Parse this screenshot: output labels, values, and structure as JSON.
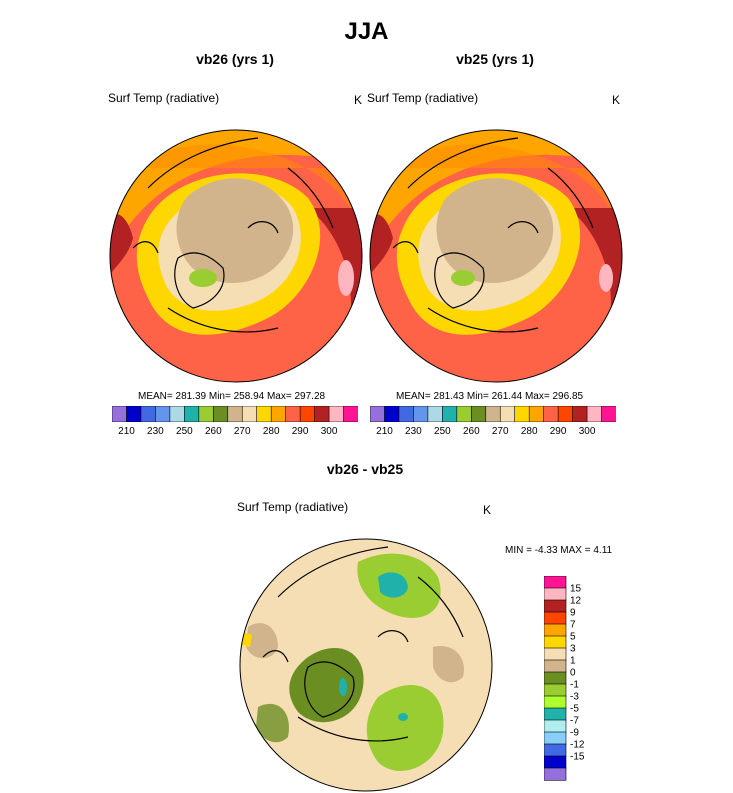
{
  "title": "JJA",
  "panels": [
    {
      "title": "vb26 (yrs 1)",
      "variable": "Surf Temp (radiative)",
      "units": "K",
      "stats": "MEAN= 281.39  Min= 258.94  Max= 297.28"
    },
    {
      "title": "vb25 (yrs 1)",
      "variable": "Surf Temp (radiative)",
      "units": "K",
      "stats": "MEAN= 281.43  Min= 261.44  Max= 296.85"
    },
    {
      "title": "vb26 - vb25",
      "variable": "Surf Temp (radiative)",
      "units": "K",
      "stats": "MIN =  -4.33 MAX =   4.11"
    }
  ],
  "chart_data": [
    {
      "type": "heatmap",
      "projection": "polar-stereographic (north pole)",
      "title": "vb26 (yrs 1)",
      "variable": "Surf Temp (radiative)",
      "units": "K",
      "mean": 281.39,
      "min": 258.94,
      "max": 297.28,
      "colorbar": {
        "orientation": "horizontal",
        "placement": "bottom",
        "tick_labels": [
          "210",
          "230",
          "250",
          "260",
          "270",
          "280",
          "290",
          "300"
        ],
        "colors": [
          "#9370DB",
          "#0000CD",
          "#4169E1",
          "#6495ED",
          "#ADD8E6",
          "#20B2AA",
          "#9ACD32",
          "#6B8E23",
          "#D2B48C",
          "#F5DEB3",
          "#FFD700",
          "#FFA500",
          "#FF6347",
          "#FF4500",
          "#B22222",
          "#FFB6C1",
          "#FF1493"
        ]
      }
    },
    {
      "type": "heatmap",
      "projection": "polar-stereographic (north pole)",
      "title": "vb25 (yrs 1)",
      "variable": "Surf Temp (radiative)",
      "units": "K",
      "mean": 281.43,
      "min": 261.44,
      "max": 296.85,
      "colorbar": {
        "orientation": "horizontal",
        "placement": "bottom",
        "tick_labels": [
          "210",
          "230",
          "250",
          "260",
          "270",
          "280",
          "290",
          "300"
        ],
        "colors": [
          "#9370DB",
          "#0000CD",
          "#4169E1",
          "#6495ED",
          "#ADD8E6",
          "#20B2AA",
          "#9ACD32",
          "#6B8E23",
          "#D2B48C",
          "#F5DEB3",
          "#FFD700",
          "#FFA500",
          "#FF6347",
          "#FF4500",
          "#B22222",
          "#FFB6C1",
          "#FF1493"
        ]
      }
    },
    {
      "type": "heatmap",
      "projection": "polar-stereographic (north pole)",
      "title": "vb26 - vb25",
      "variable": "Surf Temp (radiative)",
      "units": "K",
      "min": -4.33,
      "max": 4.11,
      "colorbar": {
        "orientation": "vertical",
        "placement": "right",
        "tick_labels": [
          "15",
          "12",
          "9",
          "7",
          "5",
          "3",
          "1",
          "0",
          "-1",
          "-3",
          "-5",
          "-7",
          "-9",
          "-12",
          "-15"
        ],
        "colors": [
          "#FF1493",
          "#FFB6C1",
          "#B22222",
          "#FF4500",
          "#FFA500",
          "#FFD700",
          "#F5DEB3",
          "#D2B48C",
          "#6B8E23",
          "#9ACD32",
          "#ADFF2F",
          "#20B2AA",
          "#AFEEEE",
          "#87CEFA",
          "#4169E1",
          "#0000CD",
          "#9370DB"
        ]
      }
    }
  ]
}
